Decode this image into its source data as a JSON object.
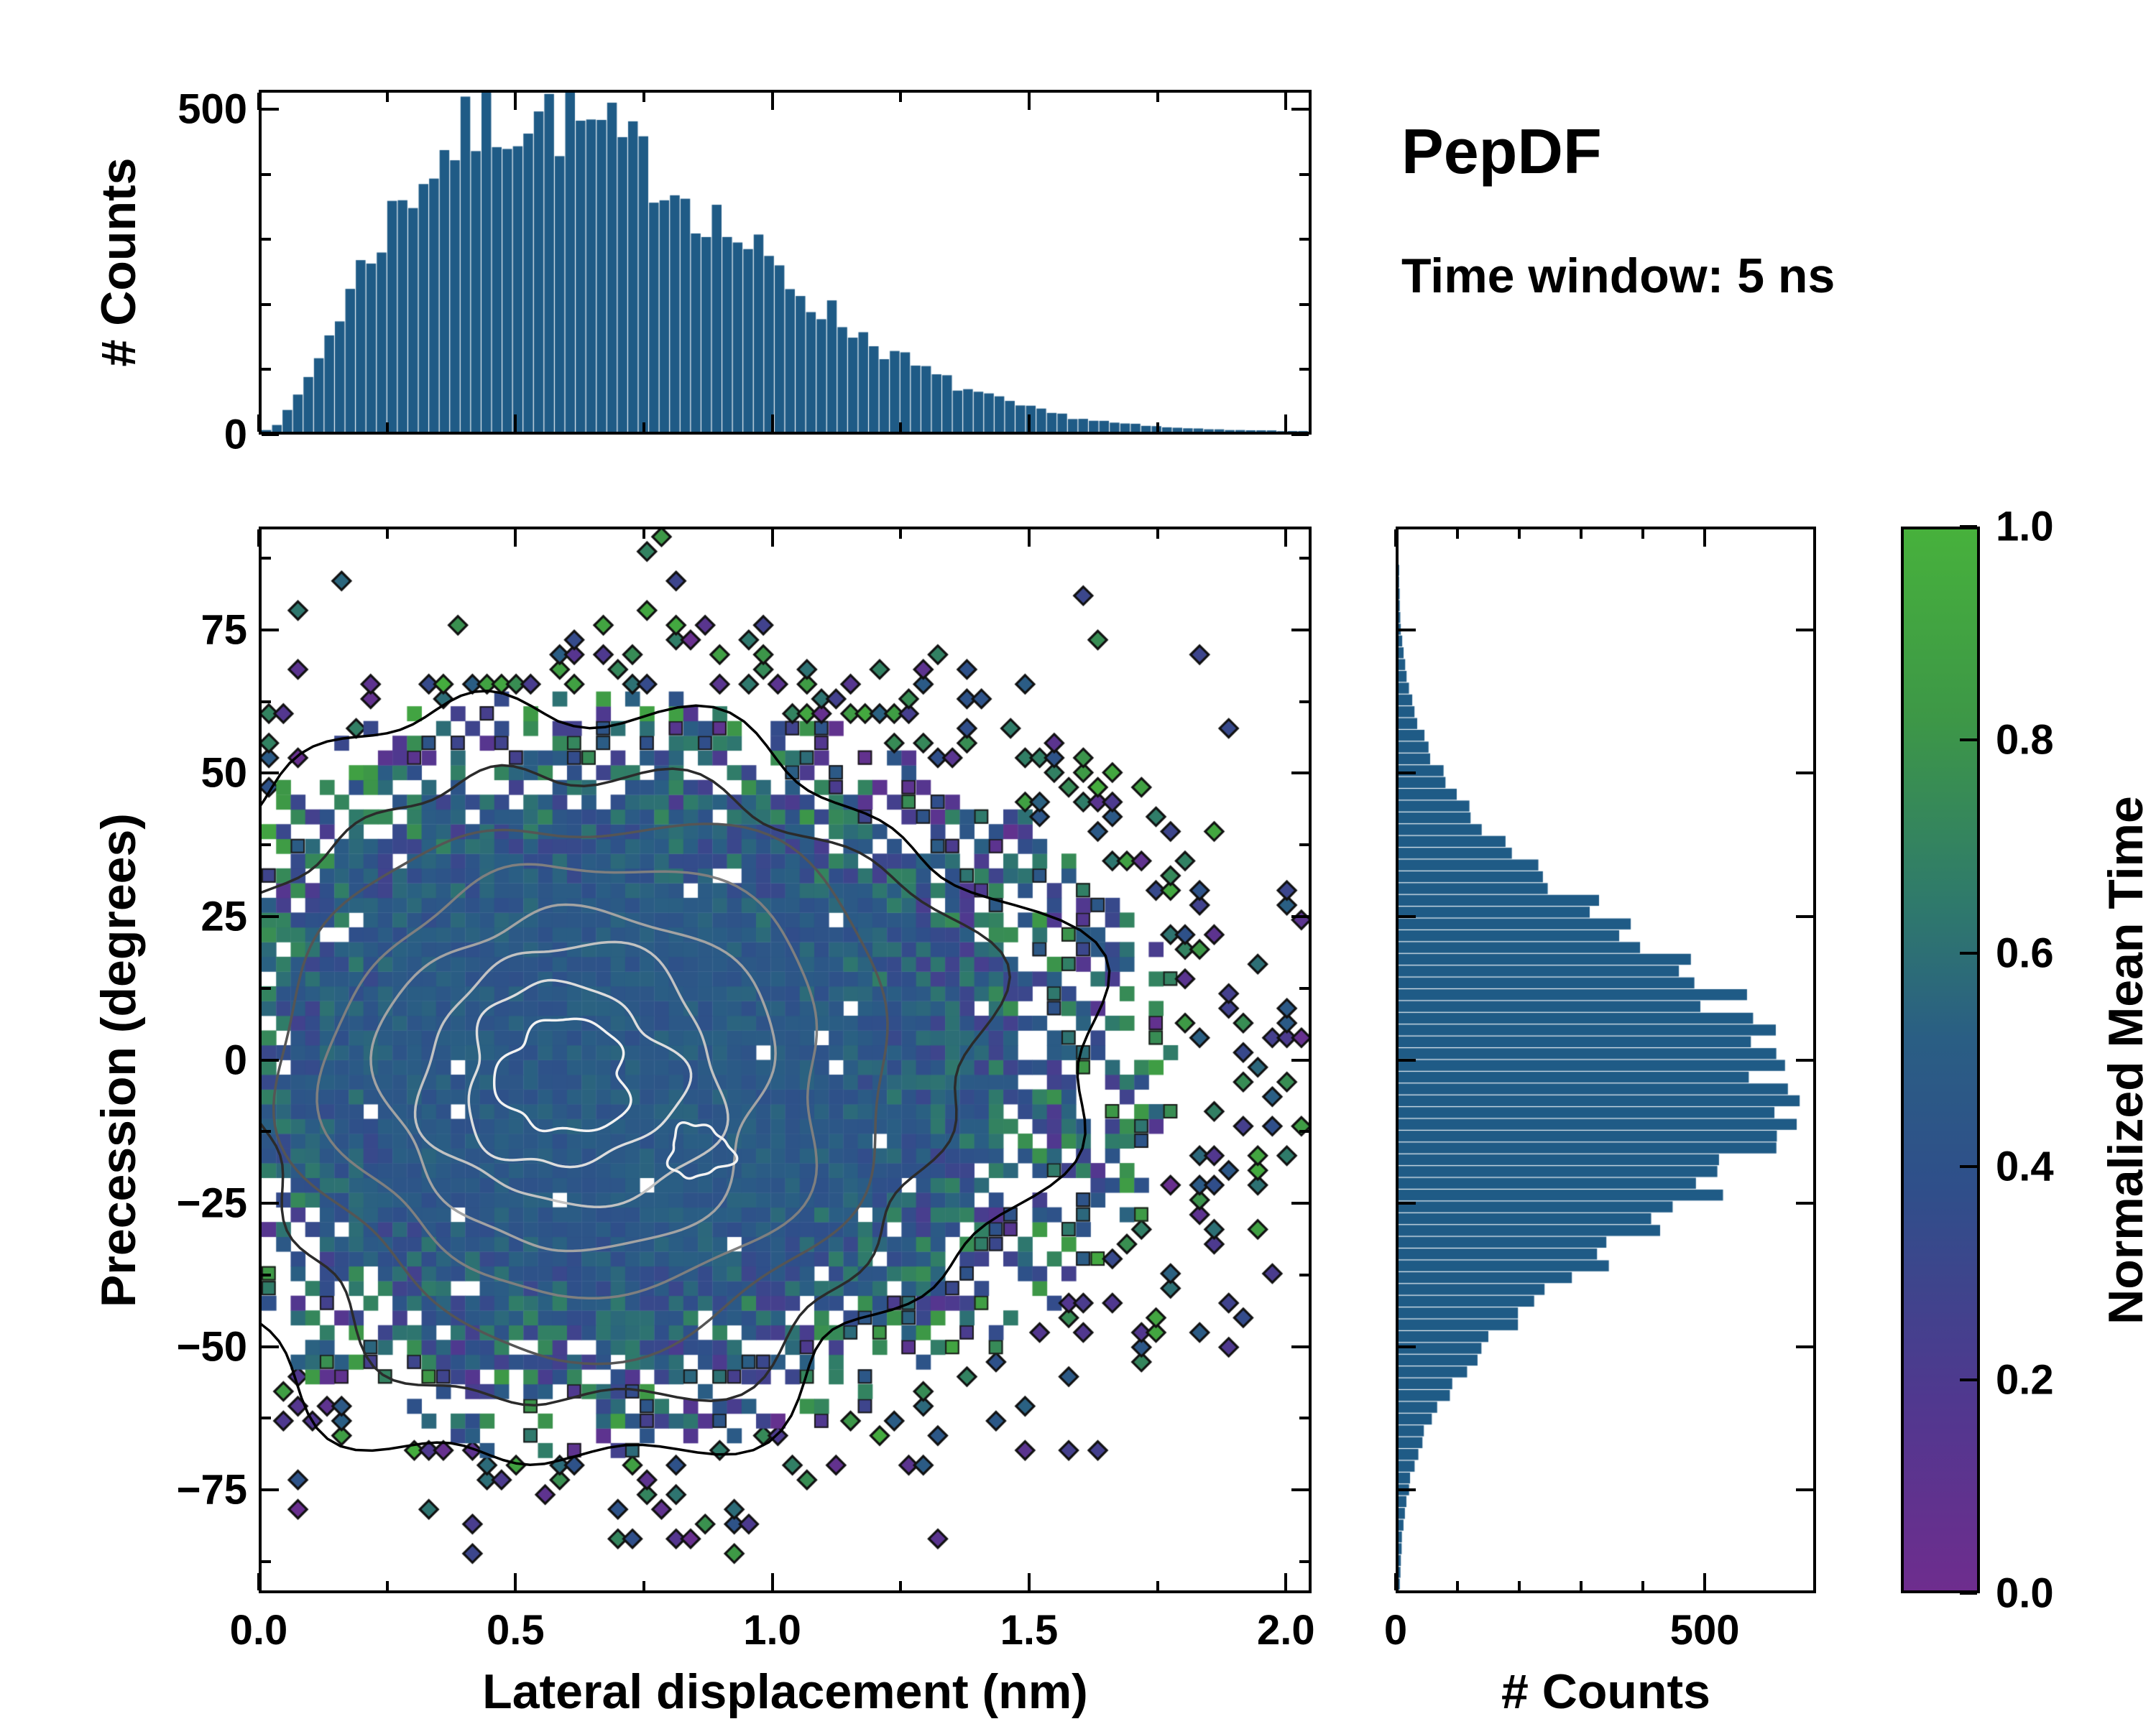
{
  "annotations": {
    "title": "PepDF",
    "subtitle": "Time window: 5 ns"
  },
  "colors": {
    "background": "#ffffff",
    "axis": "#000000",
    "histogram_fill": "#1f5b86"
  },
  "chart_data": [
    {
      "id": "top_histogram",
      "type": "bar",
      "orientation": "vertical",
      "ylabel": "# Counts",
      "yticks": [
        "0",
        "500"
      ],
      "ytick_values": [
        0,
        500
      ],
      "x_range": [
        0,
        2.05
      ],
      "y_range": [
        0,
        530
      ],
      "bar_color": "#1f5b86",
      "noise_seed": 7,
      "values": [
        3,
        12,
        30,
        55,
        85,
        118,
        152,
        186,
        220,
        252,
        282,
        310,
        336,
        360,
        382,
        402,
        420,
        436,
        450,
        462,
        472,
        480,
        487,
        491,
        494,
        495,
        494,
        492,
        489,
        485,
        479,
        472,
        464,
        455,
        445,
        434,
        423,
        411,
        398,
        385,
        372,
        358,
        344,
        330,
        316,
        302,
        288,
        274,
        260,
        247,
        234,
        221,
        208,
        196,
        184,
        172,
        161,
        150,
        140,
        130,
        120,
        111,
        102,
        94,
        86,
        79,
        72,
        66,
        60,
        54,
        49,
        44,
        40,
        36,
        32,
        29,
        26,
        23,
        20,
        18,
        16,
        14,
        12,
        11,
        9,
        8,
        7,
        6,
        5,
        5,
        4,
        4,
        3,
        3,
        2,
        2,
        2,
        1,
        1,
        1
      ]
    },
    {
      "id": "joint_heatmap",
      "type": "heatmap",
      "xlabel": "Lateral displacement (nm)",
      "ylabel": "Precession (degrees)",
      "xticks": [
        "0.0",
        "0.5",
        "1.0",
        "1.5",
        "2.0"
      ],
      "xtick_values": [
        0,
        0.5,
        1.0,
        1.5,
        2.0
      ],
      "yticks": [
        "−75",
        "−50",
        "−25",
        "0",
        "25",
        "50",
        "75"
      ],
      "ytick_values": [
        -75,
        -50,
        -25,
        0,
        25,
        50,
        75
      ],
      "x_range": [
        0,
        2.05
      ],
      "y_range": [
        -93,
        93
      ],
      "color_label": "Normalized Mean Time",
      "grid": {
        "cols": 72,
        "rows": 72
      },
      "generator": {
        "seed": 1337,
        "center_x": 0.58,
        "center_y": -2,
        "sigma_x_left": 0.36,
        "sigma_x_right": 0.55,
        "sigma_y": 30,
        "core_radius": 1.55,
        "fade_radius": 3.0,
        "far_radius": 3.6,
        "core_value": 0.47,
        "core_value_noise": 0.16,
        "hole_prob": 0.025
      },
      "contours": {
        "center_x": 0.58,
        "center_y": -3,
        "sigma_x_left": 0.33,
        "sigma_x_right": 0.42,
        "sigma_y": 29,
        "levels": [
          {
            "r": 2.3,
            "color": "#000000",
            "amp": 0.15
          },
          {
            "r": 1.92,
            "color": "#2b2b2b",
            "amp": 0.13
          },
          {
            "r": 1.6,
            "color": "#555555",
            "amp": 0.12
          },
          {
            "r": 1.3,
            "color": "#7f7f7f",
            "amp": 0.12
          },
          {
            "r": 1.02,
            "color": "#a3a3a3",
            "amp": 0.12
          },
          {
            "r": 0.78,
            "color": "#c2c2c2",
            "amp": 0.14
          },
          {
            "r": 0.55,
            "color": "#dddddd",
            "amp": 0.16
          },
          {
            "r": 0.34,
            "color": "#f2f2f2",
            "amp": 0.2
          },
          {
            "r": 0.16,
            "color": "#f2f2f2",
            "amp": 0.25,
            "cx_off": 0.27,
            "cy_off": -13
          }
        ]
      }
    },
    {
      "id": "right_histogram",
      "type": "bar",
      "orientation": "horizontal",
      "xlabel": "# Counts",
      "xticks": [
        "0",
        "500"
      ],
      "xtick_values": [
        0,
        500
      ],
      "value_range": [
        0,
        680
      ],
      "y_range": [
        -93,
        93
      ],
      "bar_color": "#1f5b86",
      "noise_seed": 5,
      "values": [
        2,
        3,
        4,
        5,
        6,
        8,
        10,
        13,
        16,
        20,
        25,
        31,
        38,
        46,
        55,
        66,
        78,
        92,
        107,
        124,
        143,
        163,
        185,
        208,
        233,
        259,
        286,
        314,
        343,
        372,
        401,
        430,
        458,
        485,
        511,
        535,
        557,
        577,
        594,
        607,
        615,
        620,
        620,
        619,
        617,
        610,
        600,
        586,
        569,
        549,
        526,
        501,
        474,
        446,
        417,
        387,
        357,
        328,
        299,
        271,
        244,
        218,
        193,
        170,
        149,
        129,
        111,
        95,
        81,
        68,
        57,
        47,
        39,
        32,
        26,
        21,
        16,
        13,
        10,
        8,
        6,
        4,
        3,
        2,
        2,
        1,
        1,
        0,
        0,
        0
      ]
    },
    {
      "id": "colorbar",
      "type": "colorbar",
      "label": "Normalized Mean Time",
      "ticks": [
        "0.0",
        "0.2",
        "0.4",
        "0.6",
        "0.8",
        "1.0"
      ],
      "tick_values": [
        0,
        0.2,
        0.4,
        0.6,
        0.8,
        1.0
      ],
      "range": [
        0,
        1
      ],
      "stops": [
        {
          "t": 0.0,
          "c": "#6e2d8e"
        },
        {
          "t": 0.18,
          "c": "#50388f"
        },
        {
          "t": 0.38,
          "c": "#2f4f8a"
        },
        {
          "t": 0.52,
          "c": "#2a5e84"
        },
        {
          "t": 0.65,
          "c": "#2f7a6b"
        },
        {
          "t": 0.82,
          "c": "#3d9747"
        },
        {
          "t": 1.0,
          "c": "#47b13c"
        }
      ]
    }
  ]
}
